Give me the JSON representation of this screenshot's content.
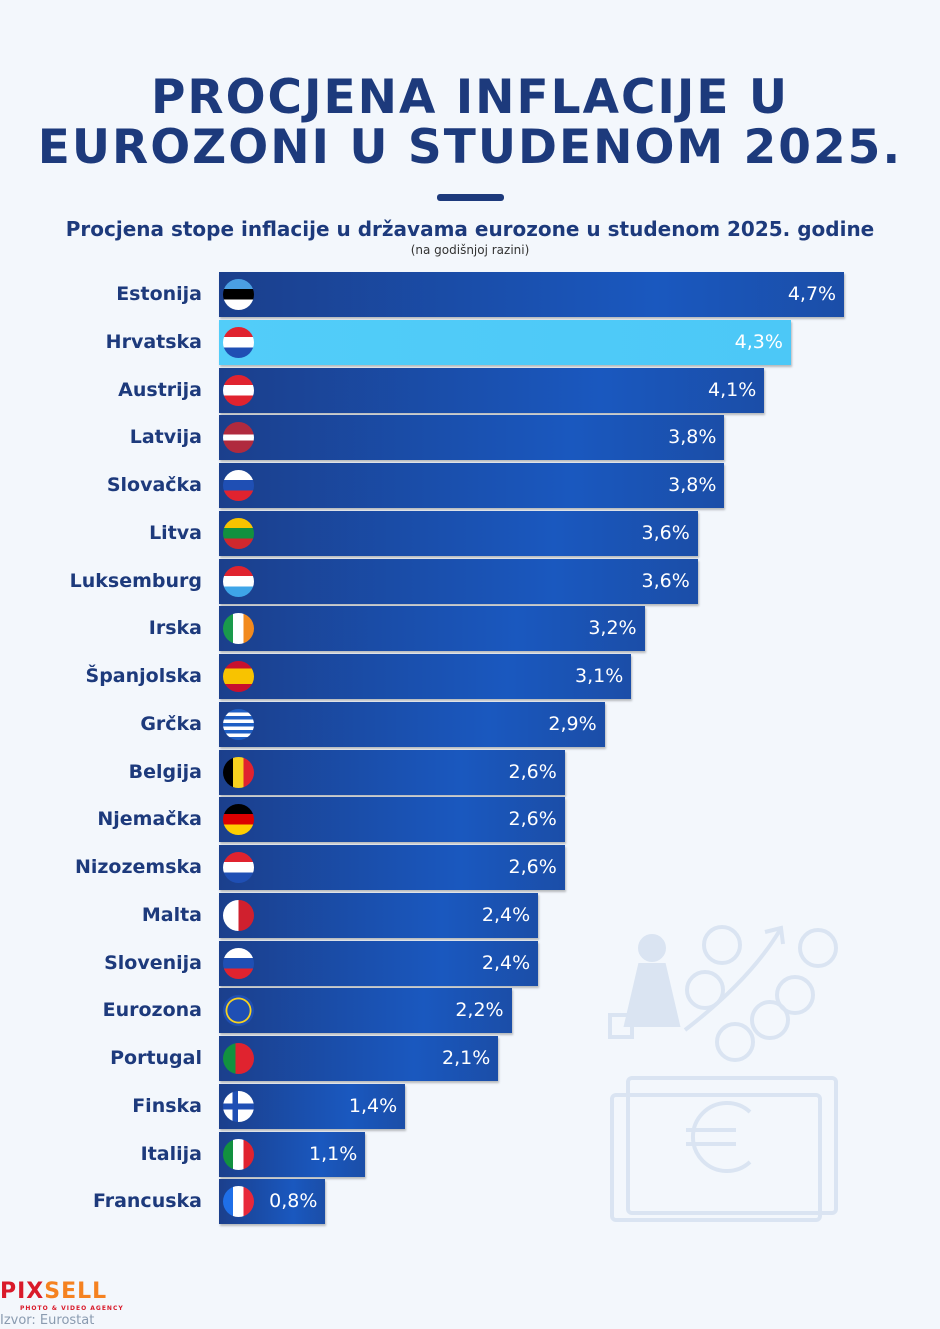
{
  "title_line1": "PROCJENA INFLACIJE U",
  "title_line2": "EUROZONI U STUDENOM 2025.",
  "chart_data": {
    "type": "bar",
    "orientation": "horizontal",
    "title": "Procjena stope inflacije u državama eurozone u studenom 2025. godine",
    "subtitle": "(na godišnjoj razini)",
    "categories": [
      "Estonija",
      "Hrvatska",
      "Austrija",
      "Latvija",
      "Slovačka",
      "Litva",
      "Luksemburg",
      "Irska",
      "Španjolska",
      "Grčka",
      "Belgija",
      "Njemačka",
      "Nizozemska",
      "Malta",
      "Slovenija",
      "Eurozona",
      "Portugal",
      "Finska",
      "Italija",
      "Francuska"
    ],
    "values": [
      4.7,
      4.3,
      4.1,
      3.8,
      3.8,
      3.6,
      3.6,
      3.2,
      3.1,
      2.9,
      2.6,
      2.6,
      2.6,
      2.4,
      2.4,
      2.2,
      2.1,
      1.4,
      1.1,
      0.8
    ],
    "labels": [
      "4,7%",
      "4,3%",
      "4,1%",
      "3,8%",
      "3,8%",
      "3,6%",
      "3,6%",
      "3,2%",
      "3,1%",
      "2,9%",
      "2,6%",
      "2,6%",
      "2,6%",
      "2,4%",
      "2,4%",
      "2,2%",
      "2,1%",
      "1,4%",
      "1,1%",
      "0,8%"
    ],
    "flags": [
      "ee",
      "hr",
      "at",
      "lv",
      "sk",
      "lt",
      "lu",
      "ie",
      "es",
      "gr",
      "be",
      "de",
      "nl",
      "mt",
      "si",
      "eu",
      "pt",
      "fi",
      "it",
      "fr"
    ],
    "highlight": "Hrvatska",
    "colors": {
      "bar": "#1a4fa8",
      "highlight": "#4fc9f7",
      "text": "#1d3a7c"
    },
    "unit": "%"
  },
  "footer": {
    "logo": "PIXSELL",
    "logo_tagline": "PHOTO & VIDEO AGENCY",
    "source": "Izvor: Eurostat"
  }
}
